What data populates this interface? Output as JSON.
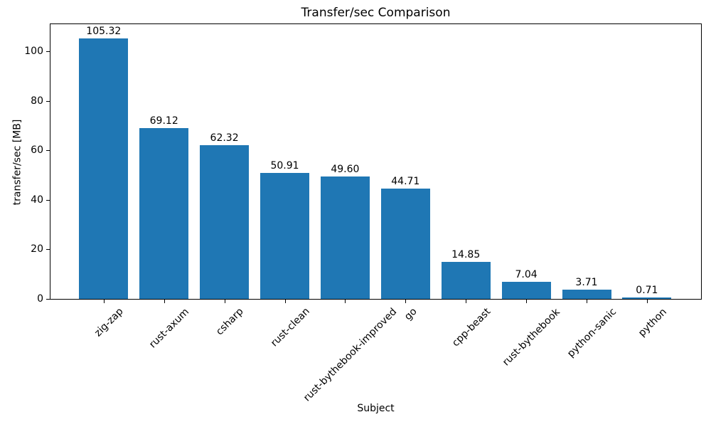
{
  "chart_data": {
    "type": "bar",
    "title": "Transfer/sec Comparison",
    "xlabel": "Subject",
    "ylabel": "transfer/sec [MB]",
    "categories": [
      "zig-zap",
      "rust-axum",
      "csharp",
      "rust-clean",
      "rust-bythebook-improved",
      "go",
      "cpp-beast",
      "rust-bythebook",
      "python-sanic",
      "python"
    ],
    "values": [
      105.32,
      69.12,
      62.32,
      50.91,
      49.6,
      44.71,
      14.85,
      7.04,
      3.71,
      0.71
    ],
    "value_labels": [
      "105.32",
      "69.12",
      "62.32",
      "50.91",
      "49.60",
      "44.71",
      "14.85",
      "7.04",
      "3.71",
      "0.71"
    ],
    "yticks": [
      0,
      20,
      40,
      60,
      80,
      100
    ],
    "ylim": [
      0,
      111.3
    ],
    "bar_color": "#1f77b4",
    "grid": false,
    "legend": false,
    "x_tick_rotation_deg": 45
  }
}
